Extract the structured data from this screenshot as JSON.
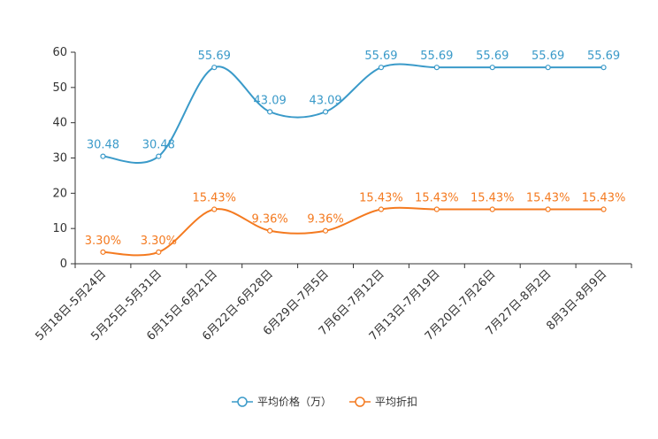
{
  "chart_data": {
    "type": "line",
    "title": "",
    "xlabel": "",
    "ylabel": "",
    "ylim": [
      0,
      60
    ],
    "yticks": [
      0,
      10,
      20,
      30,
      40,
      50,
      60
    ],
    "grid": false,
    "legend_position": "bottom-center",
    "categories": [
      "5月18日-5月24日",
      "5月25日-5月31日",
      "6月15日-6月21日",
      "6月22日-6月28日",
      "6月29日-7月5日",
      "7月6日-7月12日",
      "7月13日-7月19日",
      "7月20日-7月26日",
      "7月27日-8月2日",
      "8月3日-8月9日"
    ],
    "series": [
      {
        "name": "平均价格（万）",
        "color": "#3a9ac9",
        "values": [
          30.48,
          30.48,
          55.69,
          43.09,
          43.09,
          55.69,
          55.69,
          55.69,
          55.69,
          55.69
        ],
        "labels": [
          "30.48",
          "30.48",
          "55.69",
          "43.09",
          "43.09",
          "55.69",
          "55.69",
          "55.69",
          "55.69",
          "55.69"
        ]
      },
      {
        "name": "平均折扣",
        "color": "#f47a20",
        "values": [
          3.3,
          3.3,
          15.43,
          9.36,
          9.36,
          15.43,
          15.43,
          15.43,
          15.43,
          15.43
        ],
        "labels": [
          "3.30%",
          "3.30%",
          "15.43%",
          "9.36%",
          "9.36%",
          "15.43%",
          "15.43%",
          "15.43%",
          "15.43%",
          "15.43%"
        ]
      }
    ]
  }
}
